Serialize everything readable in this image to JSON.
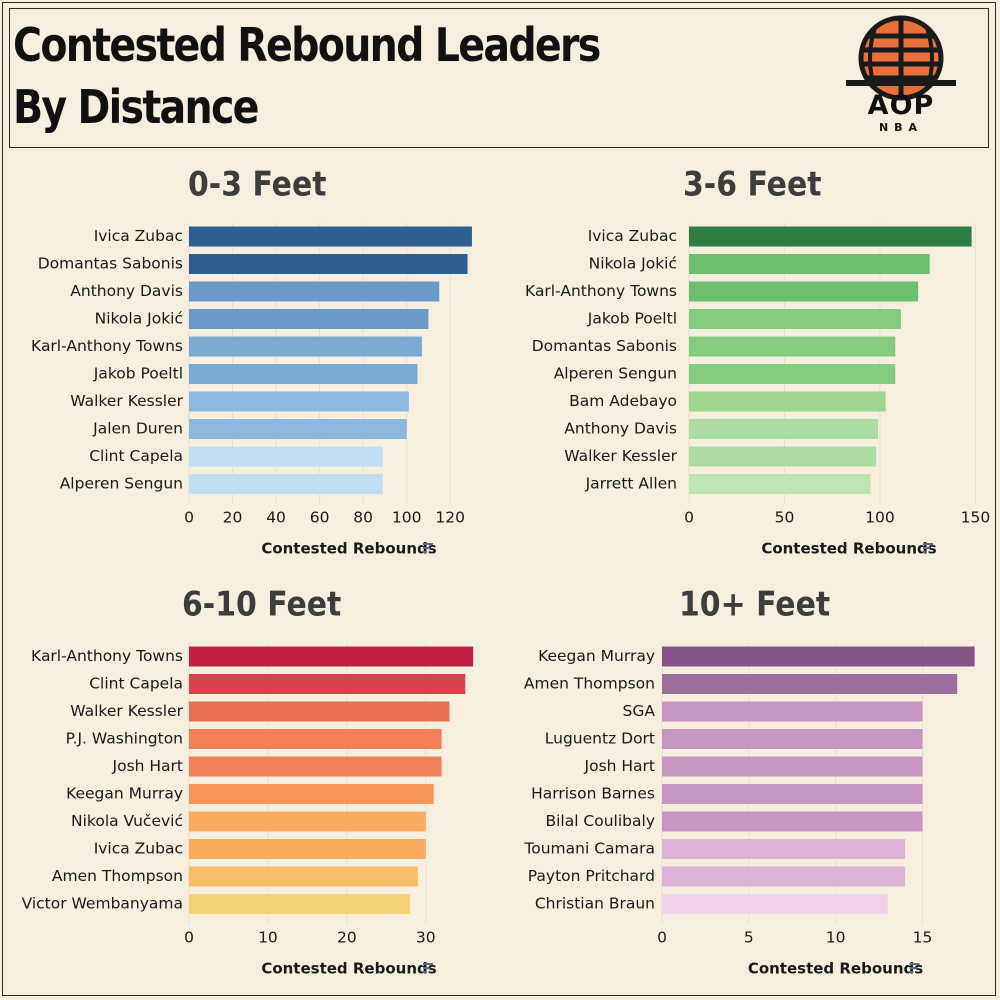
{
  "header": {
    "title_line1": "Contested Rebound Leaders",
    "title_line2": "By Distance",
    "logo_main": "AOP",
    "logo_sub": "NBA",
    "logo_icon": "basketball-icon"
  },
  "chart_data": [
    {
      "type": "bar",
      "title": "0-3 Feet",
      "xlabel": "Contested Rebounds",
      "categories": [
        "Ivica Zubac",
        "Domantas Sabonis",
        "Anthony Davis",
        "Nikola Jokić",
        "Karl-Anthony Towns",
        "Jakob Poeltl",
        "Walker Kessler",
        "Jalen Duren",
        "Clint Capela",
        "Alperen Sengun"
      ],
      "values": [
        130,
        128,
        115,
        110,
        107,
        105,
        101,
        100,
        89,
        89
      ],
      "xlim": [
        0,
        136
      ],
      "ticks": [
        0,
        20,
        40,
        60,
        80,
        100,
        120
      ],
      "colors": [
        "#2f5f8e",
        "#2f5f8e",
        "#6a9bc8",
        "#6a9bc8",
        "#7baad3",
        "#7baad3",
        "#8db8de",
        "#8db8de",
        "#c3def1",
        "#c3def1"
      ]
    },
    {
      "type": "bar",
      "title": "3-6 Feet",
      "xlabel": "Contested Rebounds",
      "categories": [
        "Ivica Zubac",
        "Nikola Jokić",
        "Karl-Anthony Towns",
        "Jakob Poeltl",
        "Domantas Sabonis",
        "Alperen Sengun",
        "Bam Adebayo",
        "Anthony Davis",
        "Walker Kessler",
        "Jarrett Allen"
      ],
      "values": [
        148,
        126,
        120,
        111,
        108,
        108,
        103,
        99,
        98,
        95
      ],
      "xlim": [
        0,
        155
      ],
      "ticks": [
        0,
        50,
        100,
        150
      ],
      "colors": [
        "#2e7d45",
        "#6cbf6c",
        "#6cbf6c",
        "#86cc7e",
        "#86cc7e",
        "#86cc7e",
        "#9fd68f",
        "#addca0",
        "#addca0",
        "#bfe4b1"
      ]
    },
    {
      "type": "bar",
      "title": "6-10 Feet",
      "xlabel": "Contested Rebounds",
      "categories": [
        "Karl-Anthony Towns",
        "Clint Capela",
        "Walker Kessler",
        "P.J. Washington",
        "Josh Hart",
        "Keegan Murray",
        "Nikola Vučević",
        "Ivica Zubac",
        "Amen Thompson",
        "Victor Wembanyama"
      ],
      "values": [
        36,
        35,
        33,
        32,
        32,
        31,
        30,
        30,
        29,
        28
      ],
      "xlim": [
        0,
        37.5
      ],
      "ticks": [
        0,
        10,
        20,
        30
      ],
      "colors": [
        "#c21f47",
        "#d9414a",
        "#eb6f57",
        "#f08056",
        "#f08056",
        "#f6955a",
        "#f9ab62",
        "#f9ab62",
        "#f8bd68",
        "#f3d277"
      ]
    },
    {
      "type": "bar",
      "title": "10+ Feet",
      "xlabel": "Contested Rebounds",
      "categories": [
        "Keegan Murray",
        "Amen Thompson",
        "SGA",
        "Luguentz Dort",
        "Josh Hart",
        "Harrison Barnes",
        "Bilal Coulibaly",
        "Toumani Camara",
        "Payton Pritchard",
        "Christian Braun"
      ],
      "values": [
        18,
        17,
        15,
        15,
        15,
        15,
        15,
        14,
        14,
        13
      ],
      "xlim": [
        0,
        18.6
      ],
      "ticks": [
        0,
        5,
        10,
        15
      ],
      "colors": [
        "#845584",
        "#9c6e9c",
        "#c596c0",
        "#c596c0",
        "#c596c0",
        "#c596c0",
        "#c596c0",
        "#dbb3d6",
        "#dbb3d6",
        "#efd2e9"
      ]
    }
  ]
}
